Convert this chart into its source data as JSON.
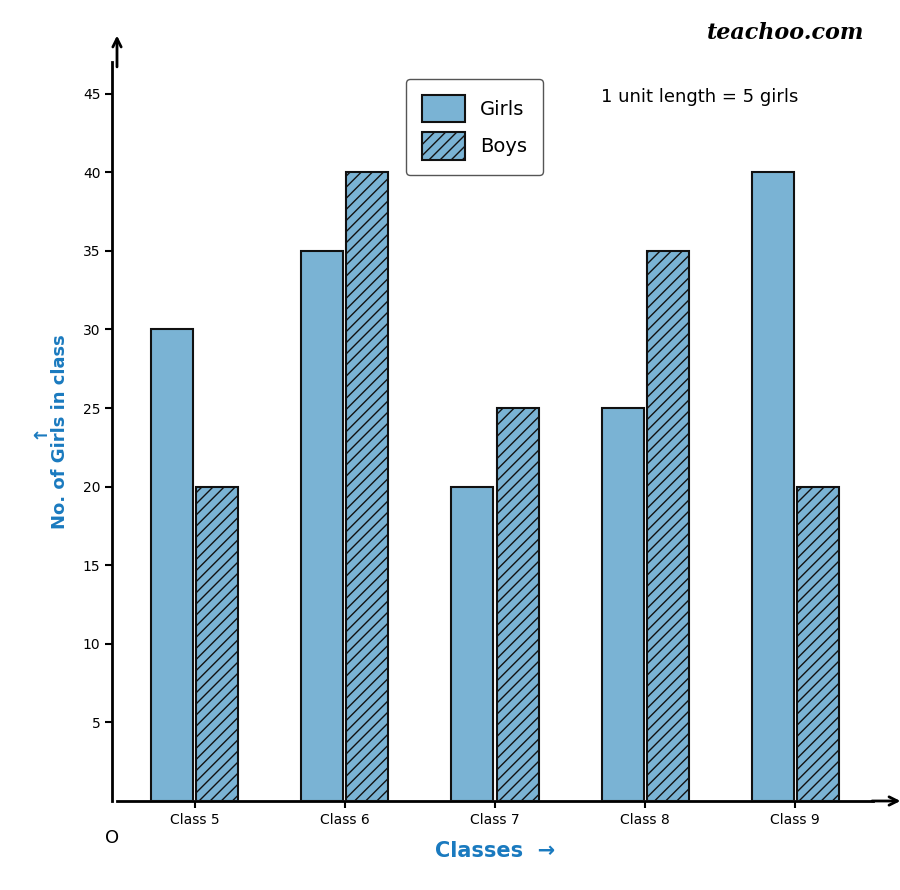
{
  "categories": [
    "Class 5",
    "Class 6",
    "Class 7",
    "Class 8",
    "Class 9"
  ],
  "girls": [
    30,
    35,
    20,
    25,
    40
  ],
  "boys": [
    20,
    40,
    25,
    35,
    20
  ],
  "girls_color": "#7ab3d4",
  "boys_color": "#7ab3d4",
  "bar_edge_color": "#111111",
  "title_text": "teachoo.com",
  "ylabel": "No. of Girls in class",
  "xlabel": "Classes",
  "unit_note": "1 unit length = 5 girls",
  "legend_girls": "Girls",
  "legend_boys": "Boys",
  "yticks": [
    5,
    10,
    15,
    20,
    25,
    30,
    35,
    40,
    45
  ],
  "ylim": [
    0,
    47
  ],
  "bar_width": 0.28,
  "background_color": "#ffffff"
}
